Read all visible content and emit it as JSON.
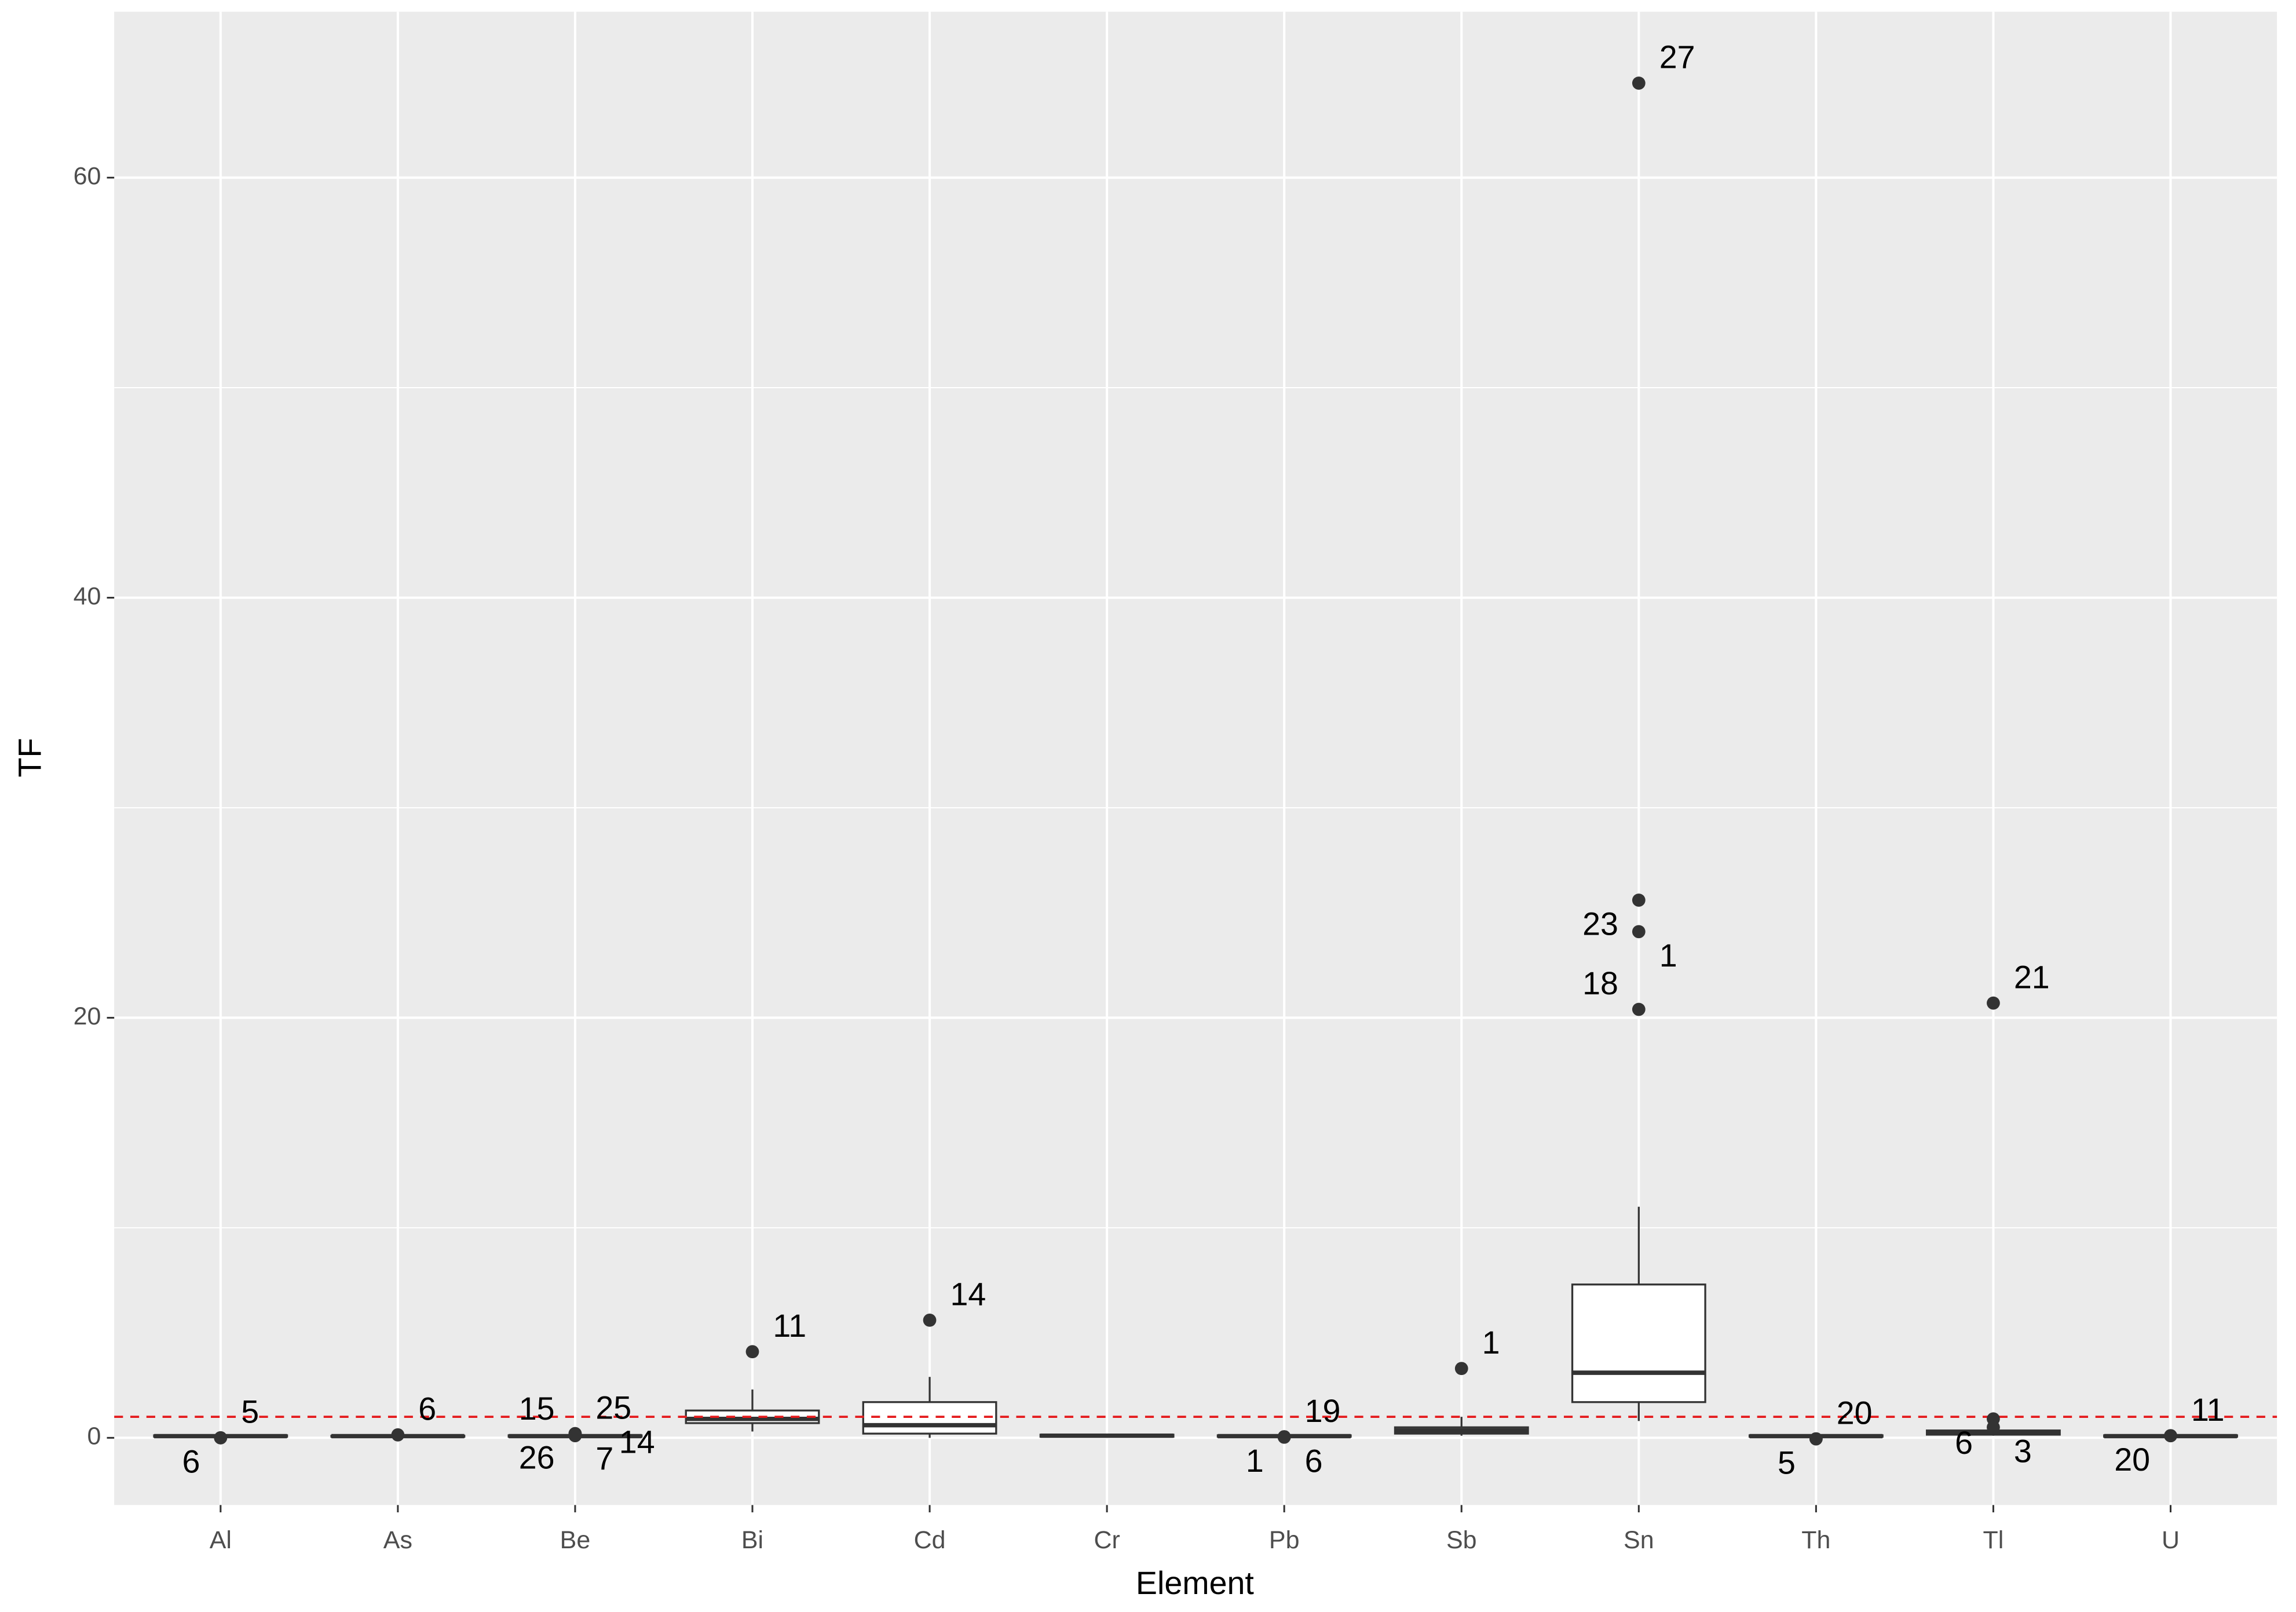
{
  "chart_data": {
    "type": "boxplot",
    "x_label": "Element",
    "y_label": "TF",
    "categories": [
      "Al",
      "As",
      "Be",
      "Bi",
      "Cd",
      "Cr",
      "Pb",
      "Sb",
      "Sn",
      "Th",
      "Tl",
      "U"
    ],
    "whisker_low": [
      0.03,
      0.03,
      0.02,
      0.3,
      0,
      0.02,
      0.02,
      0.1,
      0.8,
      0.02,
      0.1,
      0.02
    ],
    "q1": [
      0.05,
      0.05,
      0.05,
      0.7,
      0.2,
      0.05,
      0.05,
      0.2,
      1.7,
      0.05,
      0.15,
      0.05
    ],
    "median": [
      0.08,
      0.08,
      0.08,
      0.9,
      0.6,
      0.1,
      0.08,
      0.35,
      3.1,
      0.08,
      0.25,
      0.08
    ],
    "q3": [
      0.12,
      0.1,
      0.12,
      1.3,
      1.7,
      0.15,
      0.12,
      0.5,
      7.3,
      0.12,
      0.35,
      0.12
    ],
    "whisker_high": [
      0.15,
      0.14,
      0.16,
      2.3,
      2.9,
      0.2,
      0.16,
      1.0,
      11.0,
      0.16,
      0.45,
      0.16
    ],
    "outliers": [
      [
        {
          "value": 0,
          "label": 5
        },
        {
          "value": 0,
          "label": 6
        }
      ],
      [
        {
          "value": 0.14,
          "label": 6
        }
      ],
      [
        {
          "value": 0.2,
          "label": 25
        },
        {
          "value": 0.2,
          "label": 26
        },
        {
          "value": 0.15,
          "label": 7
        },
        {
          "value": 0.15,
          "label": 15
        },
        {
          "value": 0.1,
          "label": 14
        }
      ],
      [
        {
          "value": 4.1,
          "label": 11
        }
      ],
      [
        {
          "value": 5.6,
          "label": 14
        }
      ],
      [],
      [
        {
          "value": 0.05,
          "label": 19
        },
        {
          "value": 0.05,
          "label": 1
        },
        {
          "value": 0.03,
          "label": 6
        }
      ],
      [
        {
          "value": 3.3,
          "label": 1
        }
      ],
      [
        {
          "value": 64.5,
          "label": 27
        },
        {
          "value": 25.6,
          "label": 23
        },
        {
          "value": 24.1,
          "label": 1
        },
        {
          "value": 20.4,
          "label": 18
        }
      ],
      [
        {
          "value": -0.05,
          "label": 20
        },
        {
          "value": -0.05,
          "label": 5
        }
      ],
      [
        {
          "value": 20.7,
          "label": 21
        },
        {
          "value": 0.9,
          "label": 6
        },
        {
          "value": 0.5,
          "label": 3
        }
      ],
      [
        {
          "value": 0.1,
          "label": 11
        },
        {
          "value": 0.1,
          "label": 20
        }
      ]
    ],
    "ylim": [
      -3.2,
      67.9
    ],
    "yticks": [
      0,
      20,
      40,
      60
    ],
    "grid": true,
    "hline": {
      "value": 1,
      "color": "#e41a1c"
    },
    "box_color": "#333333",
    "fill": "#ffffff",
    "point_color": "#333333",
    "panel_color": "#ebebeb"
  }
}
